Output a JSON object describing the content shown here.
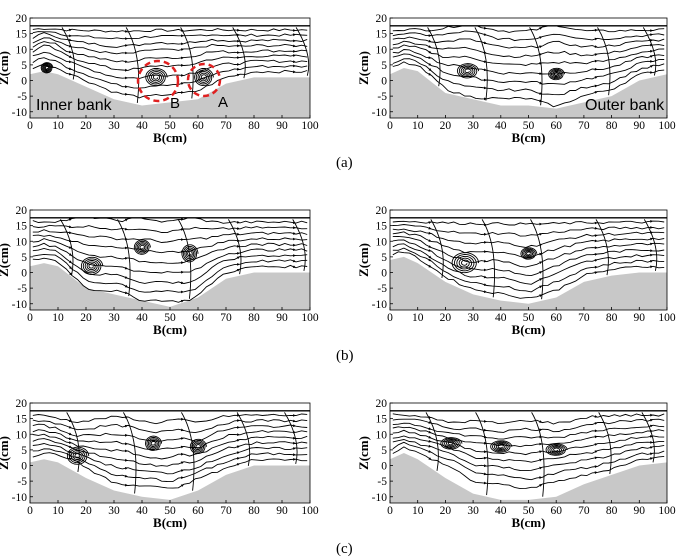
{
  "figure": {
    "captions": [
      "(a)",
      "(b)",
      "(c)"
    ],
    "annotations": {
      "inner_bank": "Inner bank",
      "outer_bank": "Outer bank",
      "label_a": "A",
      "label_b": "B"
    },
    "axes": {
      "xlabel": "B(cm)",
      "ylabel": "Z(cm)",
      "xticks": [
        "0",
        "10",
        "20",
        "30",
        "40",
        "50",
        "60",
        "70",
        "80",
        "90",
        "100"
      ],
      "yticks": [
        "20",
        "15",
        "10",
        "5",
        "0",
        "-5",
        "-10"
      ],
      "xlim": [
        0,
        100
      ],
      "ylim": [
        -12,
        20
      ]
    },
    "colors": {
      "bed": "#c8c8c8",
      "streamline": "#000000",
      "highlight": "#e02020"
    },
    "panels": [
      {
        "id": "a-left",
        "bed": [
          [
            0,
            2
          ],
          [
            5,
            3
          ],
          [
            10,
            2
          ],
          [
            20,
            -2
          ],
          [
            30,
            -6
          ],
          [
            40,
            -8
          ],
          [
            50,
            -7
          ],
          [
            60,
            -6
          ],
          [
            70,
            -1
          ],
          [
            80,
            1
          ],
          [
            90,
            1
          ],
          [
            100,
            1
          ]
        ],
        "vortices": [
          [
            6,
            4,
            2.2,
            1.8
          ],
          [
            45,
            1,
            4,
            3
          ],
          [
            62,
            1,
            3.5,
            3
          ]
        ]
      },
      {
        "id": "a-right",
        "bed": [
          [
            0,
            2
          ],
          [
            5,
            4
          ],
          [
            10,
            3
          ],
          [
            20,
            -4
          ],
          [
            30,
            -6
          ],
          [
            40,
            -8
          ],
          [
            50,
            -8
          ],
          [
            60,
            -9
          ],
          [
            70,
            -7
          ],
          [
            80,
            -5
          ],
          [
            90,
            0
          ],
          [
            100,
            2
          ]
        ],
        "vortices": [
          [
            28,
            3,
            4,
            2.5
          ],
          [
            60,
            2,
            3,
            2
          ]
        ]
      },
      {
        "id": "b-left",
        "bed": [
          [
            0,
            2
          ],
          [
            5,
            3
          ],
          [
            10,
            2
          ],
          [
            20,
            -5
          ],
          [
            30,
            -7
          ],
          [
            40,
            -9
          ],
          [
            50,
            -11
          ],
          [
            60,
            -8
          ],
          [
            70,
            -2
          ],
          [
            80,
            0
          ],
          [
            90,
            0
          ],
          [
            100,
            0
          ]
        ],
        "vortices": [
          [
            22,
            2,
            4,
            3
          ],
          [
            40,
            8,
            3,
            2.5
          ],
          [
            57,
            6,
            3,
            3
          ]
        ]
      },
      {
        "id": "b-right",
        "bed": [
          [
            0,
            4
          ],
          [
            5,
            5
          ],
          [
            10,
            3
          ],
          [
            20,
            -3
          ],
          [
            30,
            -7
          ],
          [
            40,
            -9
          ],
          [
            50,
            -10
          ],
          [
            60,
            -8
          ],
          [
            70,
            -3
          ],
          [
            80,
            -1
          ],
          [
            90,
            0
          ],
          [
            100,
            0
          ]
        ],
        "vortices": [
          [
            27,
            3,
            5,
            3.5
          ],
          [
            50,
            6,
            3,
            2
          ]
        ]
      },
      {
        "id": "c-left",
        "bed": [
          [
            0,
            1
          ],
          [
            5,
            2
          ],
          [
            10,
            1
          ],
          [
            20,
            -4
          ],
          [
            30,
            -8
          ],
          [
            40,
            -10
          ],
          [
            50,
            -11
          ],
          [
            60,
            -8
          ],
          [
            70,
            -3
          ],
          [
            80,
            0
          ],
          [
            90,
            0
          ],
          [
            100,
            0
          ]
        ],
        "vortices": [
          [
            17,
            3,
            4,
            3
          ],
          [
            44,
            7,
            3,
            2.5
          ],
          [
            60,
            6,
            3,
            2.5
          ]
        ]
      },
      {
        "id": "c-right",
        "bed": [
          [
            0,
            2
          ],
          [
            5,
            4
          ],
          [
            10,
            2
          ],
          [
            20,
            -4
          ],
          [
            30,
            -9
          ],
          [
            40,
            -11
          ],
          [
            50,
            -11
          ],
          [
            60,
            -10
          ],
          [
            70,
            -6
          ],
          [
            80,
            -3
          ],
          [
            90,
            0
          ],
          [
            100,
            1
          ]
        ],
        "vortices": [
          [
            22,
            7,
            4,
            2
          ],
          [
            40,
            6,
            4,
            2
          ],
          [
            60,
            5,
            4,
            2
          ]
        ]
      }
    ]
  }
}
